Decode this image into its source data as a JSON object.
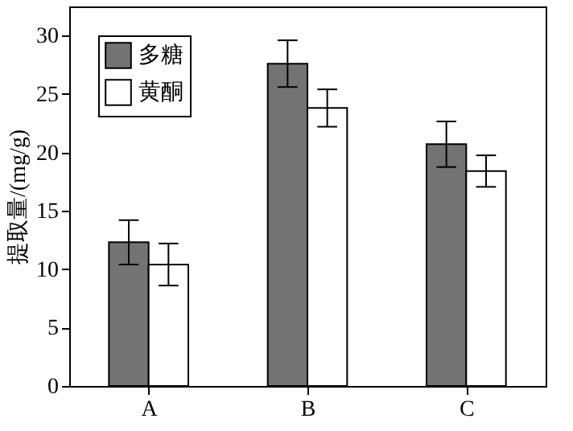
{
  "chart_data": {
    "type": "bar",
    "ylabel": "提取量/(mg/g)",
    "categories": [
      "A",
      "B",
      "C"
    ],
    "series": [
      {
        "name": "多糖",
        "color": "#737373",
        "values": [
          12.3,
          27.6,
          20.7
        ],
        "errors": [
          1.9,
          2.0,
          1.95
        ]
      },
      {
        "name": "黄酮",
        "color": "#ffffff",
        "values": [
          10.4,
          23.8,
          18.4
        ],
        "errors": [
          1.8,
          1.6,
          1.35
        ]
      }
    ],
    "ylim": [
      0,
      32.5
    ],
    "yticks": [
      0,
      5,
      10,
      15,
      20,
      25,
      30
    ],
    "grid": false,
    "legend": "top left"
  }
}
